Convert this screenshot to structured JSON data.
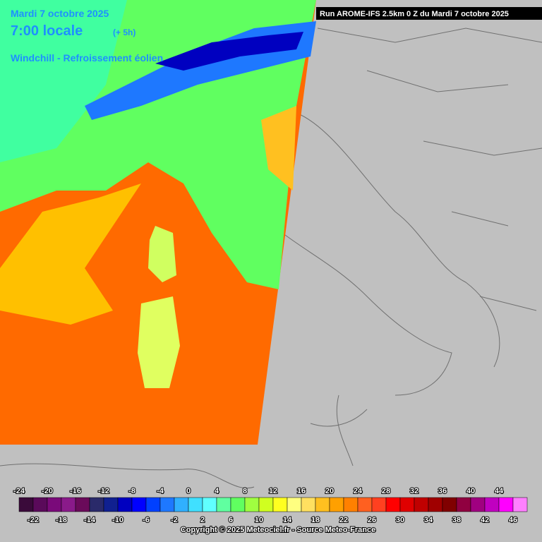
{
  "header": {
    "date": "Mardi 7 octobre 2025",
    "time": "7:00 locale",
    "offset": "(+ 5h)",
    "parameter": "Windchill - Refroissement éolien",
    "run": "Run AROME-IFS 2.5km 0 Z du Mardi 7 octobre 2025"
  },
  "legend": {
    "values": [
      -24,
      -22,
      -20,
      -18,
      -16,
      -14,
      -12,
      -10,
      -8,
      -6,
      -4,
      -2,
      0,
      2,
      4,
      6,
      8,
      10,
      12,
      14,
      16,
      18,
      20,
      22,
      24,
      26,
      28,
      30,
      32,
      34,
      36,
      38,
      40,
      42,
      44,
      46
    ],
    "colors": [
      "#3a0a3a",
      "#5a0a5a",
      "#7a0a7a",
      "#8a1a8a",
      "#6a0a5a",
      "#2a2a6a",
      "#102090",
      "#0000c0",
      "#0000ff",
      "#0040ff",
      "#1e78ff",
      "#30b0ff",
      "#40e0ff",
      "#60ffff",
      "#60ffa0",
      "#60ff60",
      "#a0ff40",
      "#d0ff20",
      "#ffff20",
      "#ffff80",
      "#ffe060",
      "#ffc020",
      "#ffa000",
      "#ff8000",
      "#ff6020",
      "#ff4020",
      "#ff0000",
      "#e00000",
      "#c00000",
      "#a00000",
      "#800000",
      "#900040",
      "#a00080",
      "#c000c0",
      "#ff00ff",
      "#ff80ff"
    ]
  },
  "footer": {
    "copyright": "Copyright © 2025 Meteociel.fr - Source Meteo-France"
  }
}
